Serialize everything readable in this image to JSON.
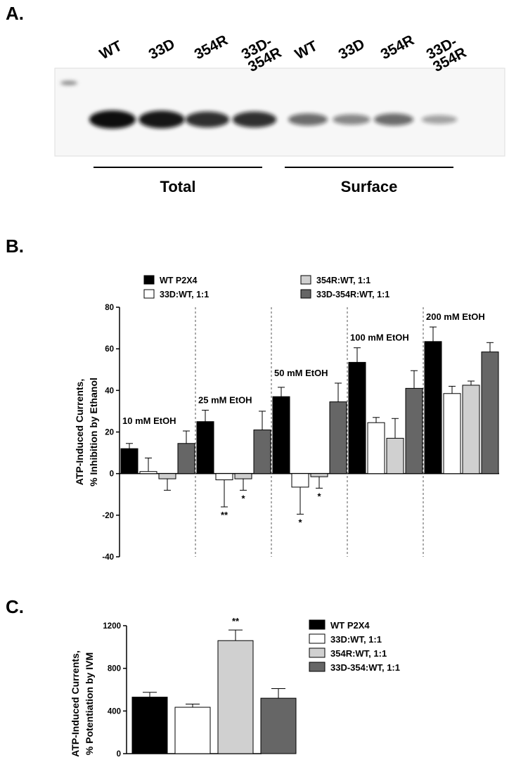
{
  "panel_labels": {
    "a": "A.",
    "b": "B.",
    "c": "C."
  },
  "blot": {
    "lanes": [
      "WT",
      "33D",
      "354R",
      "33D-\n354R",
      "WT",
      "33D",
      "354R",
      "33D-\n354R"
    ],
    "group_labels": [
      "Total",
      "Surface"
    ],
    "band_intensity": [
      1.0,
      0.95,
      0.8,
      0.8,
      0.45,
      0.3,
      0.45,
      0.15
    ],
    "band_color": "#111111"
  },
  "chart_data": [
    {
      "type": "bar",
      "ylabel": "ATP-Induced Currents,\n% Inhibition by Ethanol",
      "ylim": [
        -40,
        80
      ],
      "yticks": [
        -40,
        -20,
        0,
        20,
        40,
        60,
        80
      ],
      "series": [
        {
          "name": "WT P2X4",
          "color": "#000000"
        },
        {
          "name": "33D:WT, 1:1",
          "color": "#ffffff"
        },
        {
          "name": "354R:WT, 1:1",
          "color": "#d0d0d0"
        },
        {
          "name": "33D-354R:WT, 1:1",
          "color": "#666666"
        }
      ],
      "groups": [
        {
          "label": "10 mM EtOH",
          "values": [
            12,
            1,
            -2.5,
            14.5
          ],
          "errors": [
            2.5,
            6.5,
            5.5,
            6
          ],
          "sig": [
            "",
            "",
            "",
            ""
          ]
        },
        {
          "label": "25 mM EtOH",
          "values": [
            25,
            -3,
            -2.5,
            21
          ],
          "errors": [
            5.5,
            13,
            5.5,
            9
          ],
          "sig": [
            "",
            "**",
            "*",
            ""
          ]
        },
        {
          "label": "50 mM EtOH",
          "values": [
            37,
            -6.5,
            -1.5,
            34.5
          ],
          "errors": [
            4.5,
            13,
            5.5,
            9
          ],
          "sig": [
            "",
            "*",
            "*",
            ""
          ]
        },
        {
          "label": "100 mM EtOH",
          "values": [
            53.5,
            24.5,
            17,
            41
          ],
          "errors": [
            7,
            2.5,
            9.5,
            8.5
          ],
          "sig": [
            "",
            "",
            "",
            ""
          ]
        },
        {
          "label": "200 mM EtOH",
          "values": [
            63.5,
            38.5,
            42.5,
            58.5
          ],
          "errors": [
            7,
            3.5,
            2,
            4.5
          ],
          "sig": [
            "",
            "",
            "",
            ""
          ]
        }
      ]
    },
    {
      "type": "bar",
      "ylabel": "ATP-Induced Currents,\n% Potentiation by IVM",
      "ylim": [
        0,
        1200
      ],
      "yticks": [
        0,
        400,
        800,
        1200
      ],
      "series": [
        {
          "name": "WT P2X4",
          "color": "#000000",
          "value": 530,
          "error": 45,
          "sig": ""
        },
        {
          "name": "33D:WT, 1:1",
          "color": "#ffffff",
          "value": 435,
          "error": 30,
          "sig": ""
        },
        {
          "name": "354R:WT, 1:1",
          "color": "#d0d0d0",
          "value": 1060,
          "error": 100,
          "sig": "**"
        },
        {
          "name": "33D-354:WT, 1:1",
          "color": "#666666",
          "value": 520,
          "error": 90,
          "sig": ""
        }
      ]
    }
  ]
}
